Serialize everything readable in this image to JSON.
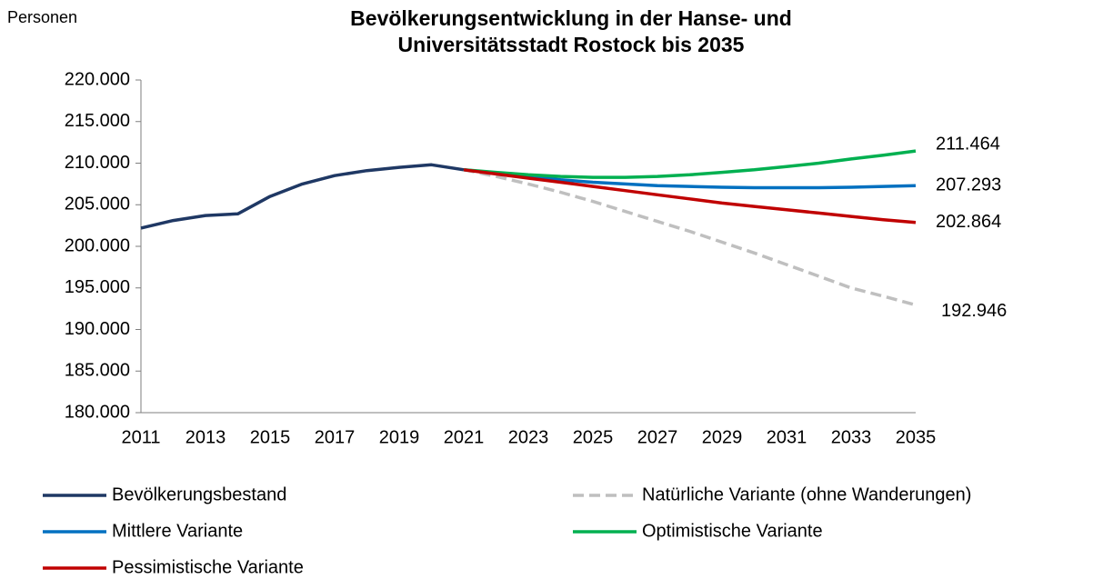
{
  "chart_data": {
    "type": "line",
    "title": [
      "Bevölkerungsentwicklung in der Hanse- und",
      "Universitätsstadt Rostock bis 2035"
    ],
    "y_axis_label": "Personen",
    "x": [
      2011,
      2012,
      2013,
      2014,
      2015,
      2016,
      2017,
      2018,
      2019,
      2020,
      2021,
      2022,
      2023,
      2024,
      2025,
      2026,
      2027,
      2028,
      2029,
      2030,
      2031,
      2032,
      2033,
      2034,
      2035
    ],
    "xlim": [
      2011,
      2035
    ],
    "xticks": [
      2011,
      2013,
      2015,
      2017,
      2019,
      2021,
      2023,
      2025,
      2027,
      2029,
      2031,
      2033,
      2035
    ],
    "ylim": [
      180000,
      220000
    ],
    "yticks": [
      {
        "value": 180000,
        "label": "180.000"
      },
      {
        "value": 185000,
        "label": "185.000"
      },
      {
        "value": 190000,
        "label": "190.000"
      },
      {
        "value": 195000,
        "label": "195.000"
      },
      {
        "value": 200000,
        "label": "200.000"
      },
      {
        "value": 205000,
        "label": "205.000"
      },
      {
        "value": 210000,
        "label": "210.000"
      },
      {
        "value": 215000,
        "label": "215.000"
      },
      {
        "value": 220000,
        "label": "220.000"
      }
    ],
    "grid": false,
    "series": [
      {
        "name": "Bevölkerungsbestand",
        "color": "#1f3864",
        "dashed": false,
        "values": [
          202200,
          203100,
          203700,
          203900,
          206000,
          207500,
          208500,
          209100,
          209500,
          209800,
          209200,
          null,
          null,
          null,
          null,
          null,
          null,
          null,
          null,
          null,
          null,
          null,
          null,
          null,
          null
        ]
      },
      {
        "name": "Natürliche Variante (ohne Wanderungen)",
        "color": "#bfbfbf",
        "dashed": true,
        "values": [
          null,
          null,
          null,
          null,
          null,
          null,
          null,
          null,
          null,
          null,
          209200,
          208400,
          207500,
          206500,
          205400,
          204200,
          203000,
          201800,
          200500,
          199200,
          197800,
          196400,
          195000,
          194000,
          192946
        ],
        "value_labels": [
          null,
          null,
          null,
          null,
          null,
          null,
          null,
          null,
          null,
          null,
          null,
          null,
          null,
          null,
          null,
          null,
          null,
          null,
          null,
          null,
          null,
          null,
          null,
          null,
          "192.946"
        ]
      },
      {
        "name": "Mittlere Variante",
        "color": "#0070c0",
        "dashed": false,
        "values": [
          null,
          null,
          null,
          null,
          null,
          null,
          null,
          null,
          null,
          null,
          209200,
          208800,
          208400,
          208000,
          207700,
          207500,
          207300,
          207200,
          207100,
          207050,
          207050,
          207050,
          207100,
          207200,
          207293
        ],
        "value_labels": [
          null,
          null,
          null,
          null,
          null,
          null,
          null,
          null,
          null,
          null,
          null,
          null,
          null,
          null,
          null,
          null,
          null,
          null,
          null,
          null,
          null,
          null,
          null,
          null,
          "207.293"
        ]
      },
      {
        "name": "Optimistische Variante",
        "color": "#00b050",
        "dashed": false,
        "values": [
          null,
          null,
          null,
          null,
          null,
          null,
          null,
          null,
          null,
          null,
          209200,
          208900,
          208600,
          208400,
          208300,
          208300,
          208400,
          208600,
          208900,
          209200,
          209600,
          210000,
          210500,
          210950,
          211464
        ],
        "value_labels": [
          null,
          null,
          null,
          null,
          null,
          null,
          null,
          null,
          null,
          null,
          null,
          null,
          null,
          null,
          null,
          null,
          null,
          null,
          null,
          null,
          null,
          null,
          null,
          null,
          "211.464"
        ]
      },
      {
        "name": "Pessimistische Variante",
        "color": "#c00000",
        "dashed": false,
        "values": [
          null,
          null,
          null,
          null,
          null,
          null,
          null,
          null,
          null,
          null,
          209200,
          208700,
          208200,
          207700,
          207200,
          206700,
          206200,
          205700,
          205200,
          204800,
          204400,
          204000,
          203600,
          203200,
          202864
        ],
        "value_labels": [
          null,
          null,
          null,
          null,
          null,
          null,
          null,
          null,
          null,
          null,
          null,
          null,
          null,
          null,
          null,
          null,
          null,
          null,
          null,
          null,
          null,
          null,
          null,
          null,
          "202.864"
        ]
      }
    ]
  }
}
